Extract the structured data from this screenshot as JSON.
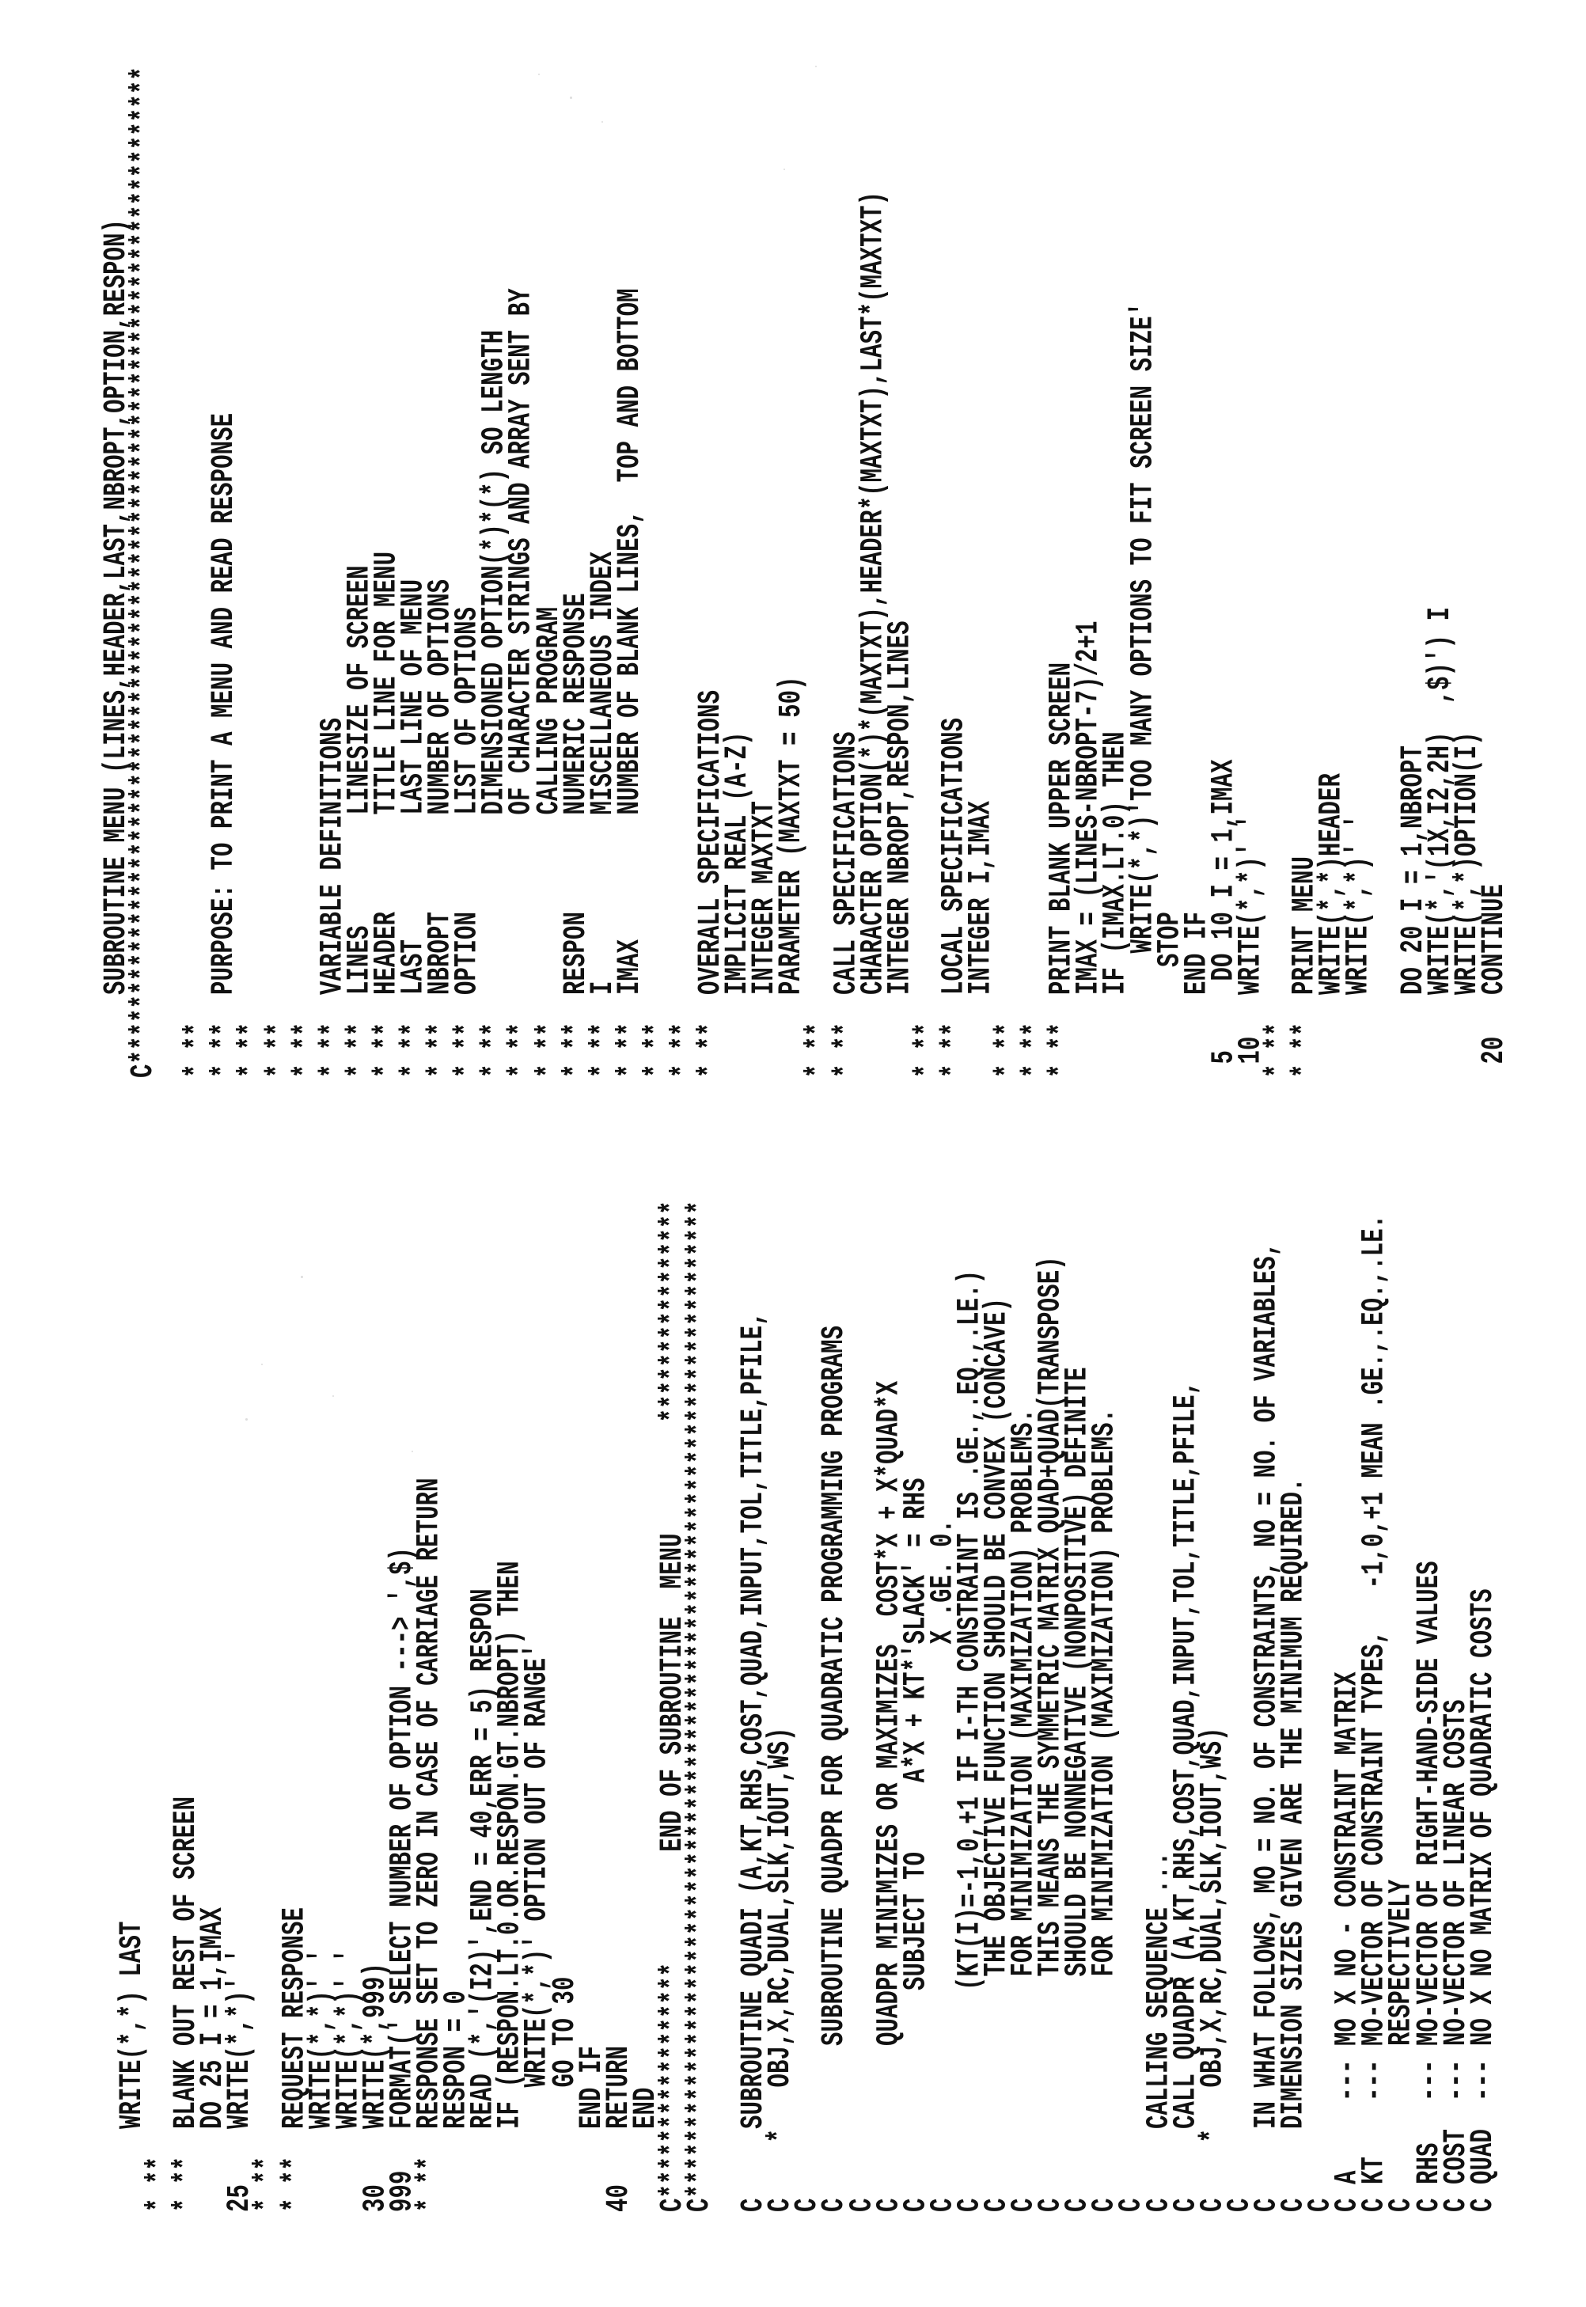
{
  "left_column": {
    "lines": [
      "      WRITE(*,*) LAST",
      "* **",
      "* **  BLANK OUT REST OF SCREEN",
      "      DO 25 I = 1,IMAX",
      "25    WRITE(*,*)' '",
      "* **",
      "* **  REQUEST RESPONSE",
      "      WRITE(*,*)' '",
      "      WRITE(*,*)' '",
      "30    WRITE(*,999)",
      "999   FORMAT(' SELECT NUMBER OF OPTION ---> ',$)",
      "* **  RESPONSE SET TO ZERO IN CASE OF CARRIAGE RETURN",
      "      RESPON = 0",
      "      READ (*,'(I2)',END = 40,ERR = 5) RESPON",
      "      IF (RESPON.LT.0.OR.RESPON.GT.NBROPT) THEN",
      "         WRITE(*,*)' OPTION OUT OF RANGE'",
      "         GO TO 30",
      "      END IF",
      "40    RETURN",
      "      END",
      "C*****************        END OF SUBROUTINE  MENU        ****************",
      "C************************************************************************",
      "",
      "C     SUBROUTINE QUADI (A,KT,RHS,COST,QUAD,INPUT,TOL,TITLE,PFILE,",
      "C    *   OBJ,X,RC,DUAL,SLK,IOUT,WS)",
      "C",
      "C           SUBROUTINE QUADPR FOR QUADRATIC PROGRAMMING PROGRAMS",
      "C",
      "C           QUADPR MINIMIZES OR MAXIMIZES  COST*X + X*QUAD*X",
      "C               SUBJECT TO     A*X + KT*'SLACK' = RHS",
      "C                                        X .GE. 0.",
      "C               (KT(I)=-1,0,+1 IF I-TH CONSTRAINT IS .GE.,.EQ.,.LE.)",
      "C                THE OBJECTIVE FUNCTION SHOULD BE CONVEX (CONCAVE)",
      "C                FOR MINIMIZATION (MAXIMIZATION) PROBLEMS.",
      "C                THIS MEANS THE SYMMETRIC MATRIX QUAD+QUAD(TRANSPOSE)",
      "C                SHOULD BE NONNEGATIVE (NONPOSITIVE) DEFINITE",
      "C                FOR MINIMIZATION (MAXIMIZATION) PROBLEMS.",
      "C",
      "C     CALLING SEQUENCE ...",
      "C     CALL QUADPR (A,KT,RHS,COST,QUAD,INPUT,TOL,TITLE,PFILE,",
      "C    *   OBJ,X,RC,DUAL,SLK,IOUT,WS)",
      "C",
      "C     IN WHAT FOLLOWS, MO = NO. OF CONSTRAINTS, NO = NO. OF VARIABLES,",
      "C     DIMENSION SIZES GIVEN ARE THE MINIMUM REQUIRED.",
      "C",
      "C A     --- MO X NO - CONSTRAINT MATRIX",
      "C KT    --- MO-VECTOR OF CONSTRAINT TYPES,   -1,0,+1 MEAN .GE.,.EQ.,.LE.",
      "C           RESPECTIVELY",
      "C RHS   --- MO-VECTOR OF RIGHT-HAND-SIDE VALUES",
      "C COST  --- NO-VECTOR OF LINEAR COSTS",
      "C QUAD  --- NO X NO MATRIX OF QUADRATIC COSTS"
    ]
  },
  "right_column": {
    "lines": [
      "      SUBROUTINE MENU (LINES,HEADER,LAST,NBROPT,OPTION,RESPON)",
      "C************************************************************************",
      "",
      "* **",
      "* **  PURPOSE: TO PRINT A MENU AND READ RESPONSE",
      "* **",
      "* **",
      "* **",
      "* **  VARIABLE DEFINITIONS",
      "* **  LINES        LINESIZE OF SCREEN",
      "* **  HEADER       TITLE LINE FOR MENU",
      "* **  LAST         LAST LINE OF MENU",
      "* **  NBROPT       NUMBER OF OPTIONS",
      "* **  OPTION       LIST OF OPTIONS",
      "* **               DIMENSIONED OPTION(*)*(*) SO LENGTH",
      "* **               OF CHARACTER STRINGS AND ARRAY SENT BY",
      "* **               CALLING PROGRAM",
      "* **  RESPON       NUMERIC RESPONSE",
      "* **  I            MISCELLANEOUS INDEX",
      "* **  IMAX         NUMBER OF BLANK LINES,  TOP AND BOTTOM",
      "* **",
      "* **",
      "* **  OVERALL SPECIFICATIONS",
      "      IMPLICIT REAL (A-Z)",
      "      INTEGER MAXTXT",
      "      PARAMETER (MAXTXT = 50)",
      "* **",
      "* **  CALL SPECIFICATIONS",
      "      CHARACTER OPTION(*)*(MAXTXT),HEADER*(MAXTXT),LAST*(MAXTXT)",
      "      INTEGER NBROPT,RESPON,LINES",
      "* **",
      "* **  LOCAL SPECIFICATIONS",
      "      INTEGER I,IMAX",
      "* **",
      "* **",
      "* **  PRINT BLANK UPPER SCREEN",
      "      IMAX = (LINES-NBROPT-7)/2+1",
      "      IF (IMAX.LT.0) THEN",
      "         WRITE(*,*)'TOO MANY OPTIONS TO FIT SCREEN SIZE'",
      "        STOP",
      "      END IF",
      " 5     DO 10 I = 1,IMAX",
      " 10   WRITE(*,*)' '",
      "* **",
      "* **  PRINT MENU",
      "      WRITE(*,*)HEADER",
      "      WRITE(*,*)' '",
      "",
      "      DO 20 I = 1,NBROPT",
      "      WRITE(*,'(1X,I2,2H)  ,$)') I",
      "      WRITE(*,*)OPTION(I)",
      " 20   CONTINUE"
    ]
  }
}
